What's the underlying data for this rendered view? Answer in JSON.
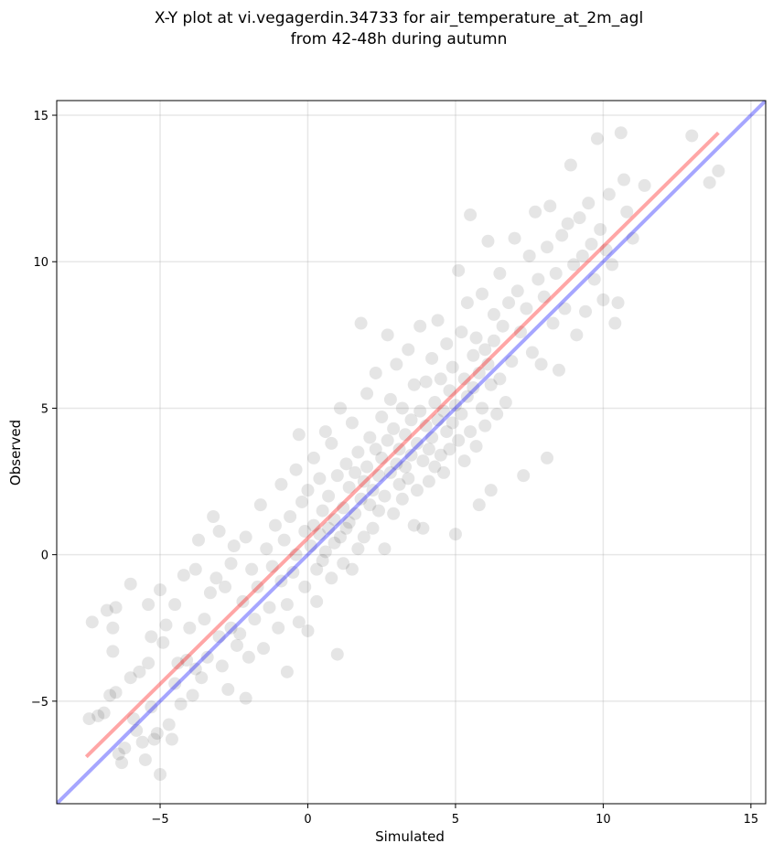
{
  "chart_data": {
    "type": "scatter",
    "title_line1": "X-Y plot at vi.vegagerdin.34733 for air_temperature_at_2m_agl",
    "title_line2": "from 42-48h during autumn",
    "xlabel": "Simulated",
    "ylabel": "Observed",
    "xlim": [
      -8.5,
      15.5
    ],
    "ylim": [
      -8.5,
      15.5
    ],
    "xticks": [
      -5,
      0,
      5,
      10,
      15
    ],
    "yticks": [
      -5,
      0,
      5,
      10,
      15
    ],
    "xtick_labels": [
      "−5",
      "0",
      "5",
      "10",
      "15"
    ],
    "ytick_labels": [
      "−5",
      "0",
      "5",
      "10",
      "15"
    ],
    "grid": true,
    "point_color": "#000000",
    "point_alpha": 0.1,
    "identity_line": {
      "color": "#0000ff",
      "alpha": 0.35,
      "x": [
        -8.5,
        15.5
      ],
      "y": [
        -8.5,
        15.5
      ]
    },
    "fit_line": {
      "color": "#ff0000",
      "alpha": 0.35,
      "x": [
        -7.5,
        13.9
      ],
      "y": [
        -6.9,
        14.4
      ]
    },
    "series": [
      {
        "points": [
          [
            -7.4,
            -5.6
          ],
          [
            -7.3,
            -2.3
          ],
          [
            -7.1,
            -5.5
          ],
          [
            -6.9,
            -5.4
          ],
          [
            -6.8,
            -1.9
          ],
          [
            -6.7,
            -4.8
          ],
          [
            -6.6,
            -2.5
          ],
          [
            -6.6,
            -3.3
          ],
          [
            -6.5,
            -1.8
          ],
          [
            -6.5,
            -4.7
          ],
          [
            -6.4,
            -6.8
          ],
          [
            -6.3,
            -7.1
          ],
          [
            -6.2,
            -6.6
          ],
          [
            -6.0,
            -1.0
          ],
          [
            -6.0,
            -4.2
          ],
          [
            -5.9,
            -5.6
          ],
          [
            -5.8,
            -6.0
          ],
          [
            -5.7,
            -4.0
          ],
          [
            -5.6,
            -6.4
          ],
          [
            -5.5,
            -7.0
          ],
          [
            -5.4,
            -3.7
          ],
          [
            -5.4,
            -1.7
          ],
          [
            -5.3,
            -2.8
          ],
          [
            -5.3,
            -5.2
          ],
          [
            -5.2,
            -6.3
          ],
          [
            -5.1,
            -6.1
          ],
          [
            -5.0,
            -1.2
          ],
          [
            -5.0,
            -7.5
          ],
          [
            -4.9,
            -3.0
          ],
          [
            -4.8,
            -2.4
          ],
          [
            -4.7,
            -5.8
          ],
          [
            -4.6,
            -6.3
          ],
          [
            -4.5,
            -1.7
          ],
          [
            -4.5,
            -4.4
          ],
          [
            -4.4,
            -3.7
          ],
          [
            -4.3,
            -5.1
          ],
          [
            -4.2,
            -0.7
          ],
          [
            -4.1,
            -3.6
          ],
          [
            -4.0,
            -2.5
          ],
          [
            -3.9,
            -4.8
          ],
          [
            -3.8,
            -0.5
          ],
          [
            -3.8,
            -3.9
          ],
          [
            -3.7,
            0.5
          ],
          [
            -3.6,
            -4.2
          ],
          [
            -3.5,
            -2.2
          ],
          [
            -3.4,
            -3.5
          ],
          [
            -3.3,
            -1.3
          ],
          [
            -3.2,
            1.3
          ],
          [
            -3.1,
            -0.8
          ],
          [
            -3.0,
            -2.8
          ],
          [
            -3.0,
            0.8
          ],
          [
            -2.9,
            -3.8
          ],
          [
            -2.8,
            -1.1
          ],
          [
            -2.7,
            -4.6
          ],
          [
            -2.6,
            -2.5
          ],
          [
            -2.6,
            -0.3
          ],
          [
            -2.5,
            0.3
          ],
          [
            -2.4,
            -3.1
          ],
          [
            -2.3,
            -2.7
          ],
          [
            -2.2,
            -1.6
          ],
          [
            -2.1,
            -4.9
          ],
          [
            -2.1,
            0.6
          ],
          [
            -2.0,
            -3.5
          ],
          [
            -1.9,
            -0.5
          ],
          [
            -1.8,
            -2.2
          ],
          [
            -1.7,
            -1.1
          ],
          [
            -1.6,
            1.7
          ],
          [
            -1.5,
            -3.2
          ],
          [
            -1.4,
            0.2
          ],
          [
            -1.3,
            -1.8
          ],
          [
            -1.2,
            -0.4
          ],
          [
            -1.1,
            1.0
          ],
          [
            -1.0,
            -2.5
          ],
          [
            -0.9,
            -0.9
          ],
          [
            -0.9,
            2.4
          ],
          [
            -0.8,
            0.5
          ],
          [
            -0.7,
            -1.7
          ],
          [
            -0.7,
            -4.0
          ],
          [
            -0.6,
            1.3
          ],
          [
            -0.5,
            -0.6
          ],
          [
            -0.4,
            2.9
          ],
          [
            -0.4,
            0.0
          ],
          [
            -0.3,
            -2.3
          ],
          [
            -0.3,
            4.1
          ],
          [
            -0.2,
            1.8
          ],
          [
            -0.1,
            0.8
          ],
          [
            -0.1,
            -1.1
          ],
          [
            0.0,
            -2.6
          ],
          [
            0.0,
            2.2
          ],
          [
            0.1,
            0.3
          ],
          [
            0.2,
            1.0
          ],
          [
            0.2,
            3.3
          ],
          [
            0.3,
            -0.5
          ],
          [
            0.3,
            -1.6
          ],
          [
            0.4,
            2.6
          ],
          [
            0.4,
            0.7
          ],
          [
            0.5,
            1.5
          ],
          [
            0.5,
            -0.2
          ],
          [
            0.6,
            4.2
          ],
          [
            0.6,
            0.1
          ],
          [
            0.7,
            2.0
          ],
          [
            0.7,
            0.9
          ],
          [
            0.8,
            -0.8
          ],
          [
            0.8,
            3.8
          ],
          [
            0.9,
            1.2
          ],
          [
            0.9,
            0.4
          ],
          [
            1.0,
            -3.4
          ],
          [
            1.0,
            2.7
          ],
          [
            1.1,
            0.6
          ],
          [
            1.1,
            5.0
          ],
          [
            1.2,
            1.6
          ],
          [
            1.2,
            -0.3
          ],
          [
            1.3,
            3.1
          ],
          [
            1.3,
            0.9
          ],
          [
            1.4,
            2.3
          ],
          [
            1.4,
            1.1
          ],
          [
            1.5,
            4.5
          ],
          [
            1.5,
            -0.5
          ],
          [
            1.6,
            2.8
          ],
          [
            1.6,
            1.4
          ],
          [
            1.7,
            0.2
          ],
          [
            1.7,
            3.5
          ],
          [
            1.8,
            7.9
          ],
          [
            1.8,
            1.9
          ],
          [
            1.9,
            2.5
          ],
          [
            1.9,
            0.6
          ],
          [
            2.0,
            5.5
          ],
          [
            2.0,
            3.0
          ],
          [
            2.1,
            1.7
          ],
          [
            2.1,
            4.0
          ],
          [
            2.2,
            2.2
          ],
          [
            2.2,
            0.9
          ],
          [
            2.3,
            3.6
          ],
          [
            2.3,
            6.2
          ],
          [
            2.4,
            2.7
          ],
          [
            2.4,
            1.5
          ],
          [
            2.5,
            4.7
          ],
          [
            2.5,
            3.3
          ],
          [
            2.6,
            2.0
          ],
          [
            2.6,
            0.2
          ],
          [
            2.7,
            7.5
          ],
          [
            2.7,
            3.9
          ],
          [
            2.8,
            2.8
          ],
          [
            2.8,
            5.3
          ],
          [
            2.9,
            1.4
          ],
          [
            2.9,
            4.3
          ],
          [
            3.0,
            3.1
          ],
          [
            3.0,
            6.5
          ],
          [
            3.1,
            2.4
          ],
          [
            3.1,
            3.6
          ],
          [
            3.2,
            5.0
          ],
          [
            3.2,
            1.9
          ],
          [
            3.3,
            4.1
          ],
          [
            3.3,
            3.0
          ],
          [
            3.4,
            7.0
          ],
          [
            3.4,
            2.6
          ],
          [
            3.5,
            4.6
          ],
          [
            3.5,
            3.4
          ],
          [
            3.6,
            1.0
          ],
          [
            3.6,
            5.8
          ],
          [
            3.7,
            3.8
          ],
          [
            3.7,
            2.2
          ],
          [
            3.8,
            4.9
          ],
          [
            3.8,
            7.8
          ],
          [
            3.9,
            3.2
          ],
          [
            3.9,
            0.9
          ],
          [
            4.0,
            4.4
          ],
          [
            4.0,
            5.9
          ],
          [
            4.1,
            3.6
          ],
          [
            4.1,
            2.5
          ],
          [
            4.2,
            6.7
          ],
          [
            4.2,
            4.0
          ],
          [
            4.3,
            5.2
          ],
          [
            4.3,
            3.0
          ],
          [
            4.4,
            8.0
          ],
          [
            4.4,
            4.6
          ],
          [
            4.5,
            3.4
          ],
          [
            4.5,
            6.0
          ],
          [
            4.6,
            4.9
          ],
          [
            4.6,
            2.8
          ],
          [
            4.7,
            7.2
          ],
          [
            4.7,
            4.2
          ],
          [
            4.8,
            5.6
          ],
          [
            4.8,
            3.6
          ],
          [
            4.9,
            6.4
          ],
          [
            4.9,
            4.5
          ],
          [
            5.0,
            0.7
          ],
          [
            5.0,
            5.1
          ],
          [
            5.1,
            9.7
          ],
          [
            5.1,
            3.9
          ],
          [
            5.2,
            7.6
          ],
          [
            5.2,
            4.8
          ],
          [
            5.3,
            6.0
          ],
          [
            5.3,
            3.2
          ],
          [
            5.4,
            8.6
          ],
          [
            5.4,
            5.4
          ],
          [
            5.5,
            11.6
          ],
          [
            5.5,
            4.2
          ],
          [
            5.6,
            6.8
          ],
          [
            5.6,
            5.7
          ],
          [
            5.7,
            7.4
          ],
          [
            5.7,
            3.7
          ],
          [
            5.8,
            1.7
          ],
          [
            5.8,
            6.2
          ],
          [
            5.9,
            8.9
          ],
          [
            5.9,
            5.0
          ],
          [
            6.0,
            7.0
          ],
          [
            6.0,
            4.4
          ],
          [
            6.1,
            10.7
          ],
          [
            6.1,
            6.5
          ],
          [
            6.2,
            2.2
          ],
          [
            6.2,
            5.8
          ],
          [
            6.3,
            8.2
          ],
          [
            6.3,
            7.3
          ],
          [
            6.4,
            4.8
          ],
          [
            6.5,
            9.6
          ],
          [
            6.5,
            6.0
          ],
          [
            6.6,
            7.8
          ],
          [
            6.7,
            5.2
          ],
          [
            6.8,
            8.6
          ],
          [
            6.9,
            6.6
          ],
          [
            7.0,
            10.8
          ],
          [
            7.1,
            9.0
          ],
          [
            7.2,
            7.6
          ],
          [
            7.3,
            2.7
          ],
          [
            7.4,
            8.4
          ],
          [
            7.5,
            10.2
          ],
          [
            7.6,
            6.9
          ],
          [
            7.7,
            11.7
          ],
          [
            7.8,
            9.4
          ],
          [
            7.9,
            6.5
          ],
          [
            8.0,
            8.8
          ],
          [
            8.1,
            3.3
          ],
          [
            8.1,
            10.5
          ],
          [
            8.2,
            11.9
          ],
          [
            8.3,
            7.9
          ],
          [
            8.4,
            9.6
          ],
          [
            8.5,
            6.3
          ],
          [
            8.6,
            10.9
          ],
          [
            8.7,
            8.4
          ],
          [
            8.8,
            11.3
          ],
          [
            8.9,
            13.3
          ],
          [
            9.0,
            9.9
          ],
          [
            9.1,
            7.5
          ],
          [
            9.2,
            11.5
          ],
          [
            9.3,
            10.2
          ],
          [
            9.4,
            8.3
          ],
          [
            9.5,
            12.0
          ],
          [
            9.6,
            10.6
          ],
          [
            9.7,
            9.4
          ],
          [
            9.8,
            14.2
          ],
          [
            9.9,
            11.1
          ],
          [
            10.0,
            8.7
          ],
          [
            10.1,
            10.4
          ],
          [
            10.2,
            12.3
          ],
          [
            10.3,
            9.9
          ],
          [
            10.4,
            7.9
          ],
          [
            10.5,
            8.6
          ],
          [
            10.6,
            14.4
          ],
          [
            10.7,
            12.8
          ],
          [
            10.8,
            11.7
          ],
          [
            11.4,
            12.6
          ],
          [
            13.0,
            14.3
          ],
          [
            13.6,
            12.7
          ],
          [
            13.9,
            13.1
          ],
          [
            11.0,
            10.8
          ]
        ]
      }
    ]
  }
}
